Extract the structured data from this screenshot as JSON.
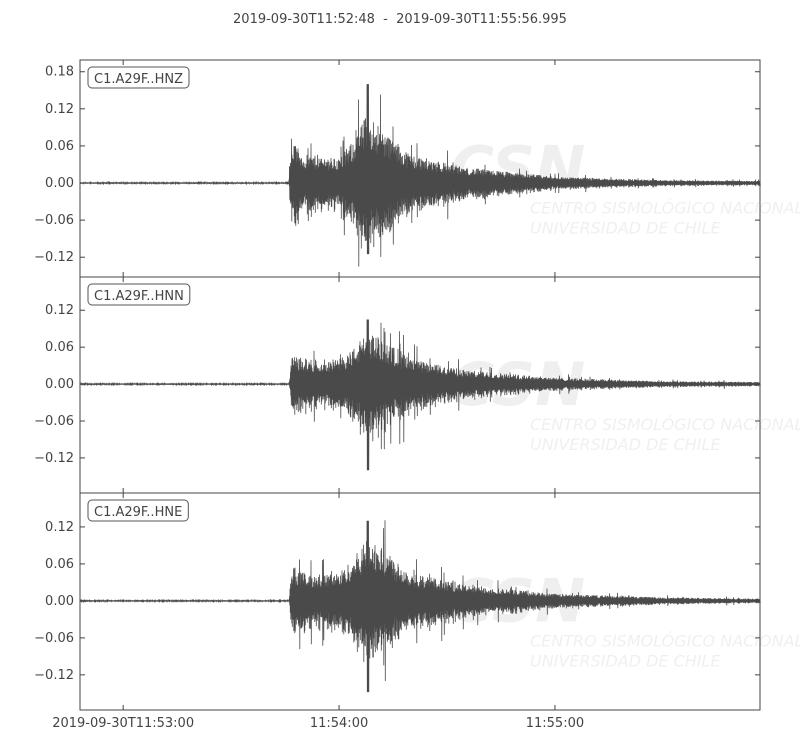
{
  "chart_data": {
    "type": "line",
    "title": "2019-09-30T11:52:48  -  2019-09-30T11:55:56.995",
    "xlim": [
      "11:52:48",
      "11:55:56.995"
    ],
    "x_ticks": [
      "2019-09-30T11:53:00",
      "11:54:00",
      "11:55:00"
    ],
    "x_tick_times": [
      "11:53:00",
      "11:54:00",
      "11:55:00"
    ],
    "line_color": "#4a4a4a",
    "watermark": "CSN CENTRO SISMOLÓGICO NACIONAL UNIVERSIDAD DE CHILE",
    "series": [
      {
        "name": "C1.A29F..HNZ",
        "ylim": [
          -0.152,
          0.199
        ],
        "y_ticks": [
          "0.18",
          "0.12",
          "0.06",
          "0.00",
          "−0.06",
          "−0.12"
        ],
        "y_tick_values": [
          0.18,
          0.12,
          0.06,
          0.0,
          -0.06,
          -0.12
        ],
        "onset": "11:53:46",
        "peak_time": "11:54:08",
        "max": 0.16,
        "min": -0.115,
        "envelope": [
          [
            "11:52:48",
            0.001
          ],
          [
            "11:53:46",
            0.001
          ],
          [
            "11:53:47",
            0.06
          ],
          [
            "11:53:50",
            0.04
          ],
          [
            "11:54:00",
            0.035
          ],
          [
            "11:54:04",
            0.06
          ],
          [
            "11:54:08",
            0.1
          ],
          [
            "11:54:13",
            0.07
          ],
          [
            "11:54:20",
            0.04
          ],
          [
            "11:54:35",
            0.022
          ],
          [
            "11:55:00",
            0.009
          ],
          [
            "11:55:30",
            0.004
          ],
          [
            "11:55:57",
            0.003
          ]
        ]
      },
      {
        "name": "C1.A29F..HNN",
        "ylim": [
          -0.177,
          0.174
        ],
        "y_ticks": [
          "0.12",
          "0.06",
          "0.00",
          "−0.06",
          "−0.12"
        ],
        "y_tick_values": [
          0.12,
          0.06,
          0.0,
          -0.06,
          -0.12
        ],
        "onset": "11:53:46",
        "peak_time": "11:54:08",
        "max": 0.105,
        "min": -0.14,
        "envelope": [
          [
            "11:52:48",
            0.001
          ],
          [
            "11:53:46",
            0.001
          ],
          [
            "11:53:47",
            0.04
          ],
          [
            "11:53:52",
            0.035
          ],
          [
            "11:54:00",
            0.035
          ],
          [
            "11:54:04",
            0.05
          ],
          [
            "11:54:08",
            0.075
          ],
          [
            "11:54:13",
            0.06
          ],
          [
            "11:54:20",
            0.035
          ],
          [
            "11:54:35",
            0.02
          ],
          [
            "11:55:00",
            0.009
          ],
          [
            "11:55:30",
            0.004
          ],
          [
            "11:55:57",
            0.003
          ]
        ]
      },
      {
        "name": "C1.A29F..HNE",
        "ylim": [
          -0.177,
          0.175
        ],
        "y_ticks": [
          "0.12",
          "0.06",
          "0.00",
          "−0.06",
          "−0.12"
        ],
        "y_tick_values": [
          0.12,
          0.06,
          0.0,
          -0.06,
          -0.12
        ],
        "onset": "11:53:46",
        "peak_time": "11:54:08",
        "max": 0.13,
        "min": -0.148,
        "envelope": [
          [
            "11:52:48",
            0.001
          ],
          [
            "11:53:46",
            0.001
          ],
          [
            "11:53:47",
            0.05
          ],
          [
            "11:53:52",
            0.035
          ],
          [
            "11:54:00",
            0.04
          ],
          [
            "11:54:04",
            0.06
          ],
          [
            "11:54:08",
            0.09
          ],
          [
            "11:54:13",
            0.07
          ],
          [
            "11:54:20",
            0.04
          ],
          [
            "11:54:35",
            0.022
          ],
          [
            "11:55:00",
            0.01
          ],
          [
            "11:55:30",
            0.005
          ],
          [
            "11:55:57",
            0.003
          ]
        ]
      }
    ]
  }
}
